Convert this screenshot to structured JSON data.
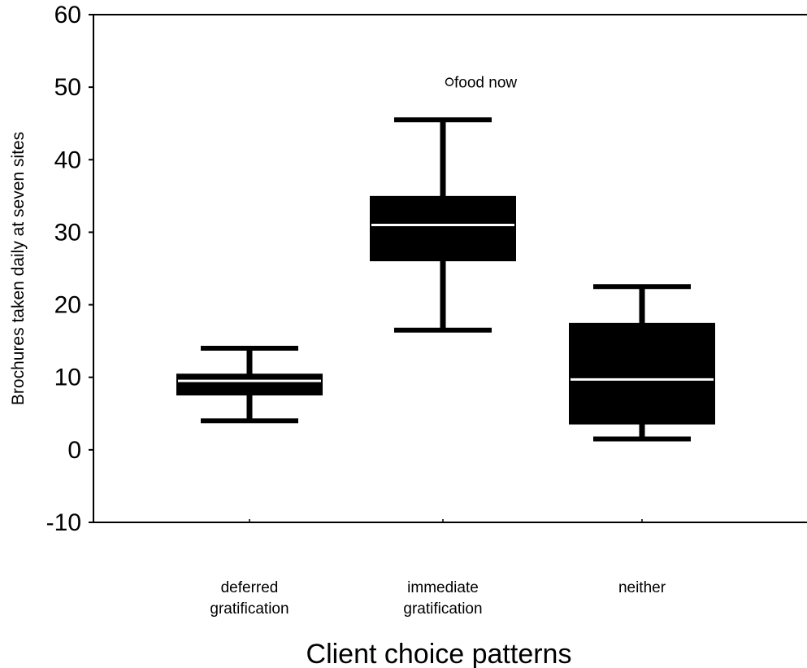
{
  "chart_data": {
    "type": "box",
    "title": "",
    "xlabel": "Client choice patterns",
    "ylabel": "Brochures taken daily at seven sites",
    "ylim": [
      -10,
      60
    ],
    "yticks": [
      -10,
      0,
      10,
      20,
      30,
      40,
      50,
      60
    ],
    "grid": false,
    "categories": [
      {
        "lines": [
          "deferred",
          "gratification"
        ]
      },
      {
        "lines": [
          "immediate",
          "gratification"
        ]
      },
      {
        "lines": [
          "neither"
        ]
      }
    ],
    "boxes": [
      {
        "whisker_low": 4,
        "q1": 7.5,
        "median": 9.5,
        "q3": 10.5,
        "whisker_high": 14
      },
      {
        "whisker_low": 16.5,
        "q1": 26,
        "median": 31,
        "q3": 35,
        "whisker_high": 45.5
      },
      {
        "whisker_low": 1.5,
        "q1": 3.5,
        "median": 9.7,
        "q3": 17.5,
        "whisker_high": 22.5
      }
    ],
    "outliers": [
      {
        "category": 1,
        "value": 50.5,
        "label": "food now"
      }
    ]
  }
}
